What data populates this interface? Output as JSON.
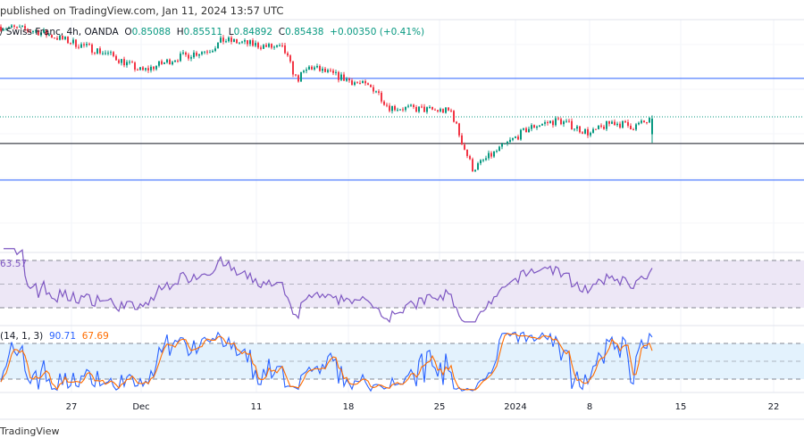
{
  "header": {
    "published": "published on TradingView.com, Jan 11, 2024 13:57 UTC"
  },
  "legend": {
    "symbol": "/ Swiss Franc, 4h, OANDA",
    "o_label": "O",
    "o": "0.85088",
    "h_label": "H",
    "h": "0.85511",
    "l_label": "L",
    "l": "0.84892",
    "c_label": "C",
    "c": "0.85438",
    "change": "+0.00350 (+0.41%)"
  },
  "rsi": {
    "value": "63.57"
  },
  "stoch": {
    "label": "(14, 1, 3)",
    "k": "90.71",
    "d": "67.69"
  },
  "footer": {
    "brand": "TradingView"
  },
  "colors": {
    "up": "#089981",
    "down": "#f23645",
    "level": "#2962ff",
    "rsi": "#7e57c2",
    "rsi_band": "#ede7f6",
    "stoch_k": "#2962ff",
    "stoch_d": "#ff6d00",
    "stoch_band": "#e3f2fd"
  },
  "chart_data": {
    "type": "candlestick",
    "timeframe": "4h",
    "x_ticks": [
      "27",
      "Dec",
      "11",
      "18",
      "25",
      "2024",
      "8",
      "15",
      "22"
    ],
    "approx_close_path": [
      {
        "date": "2023-11-21",
        "close": 0.875
      },
      {
        "date": "2023-11-24",
        "close": 0.874
      },
      {
        "date": "2023-11-29",
        "close": 0.869
      },
      {
        "date": "2023-12-01",
        "close": 0.865
      },
      {
        "date": "2023-12-04",
        "close": 0.868
      },
      {
        "date": "2023-12-07",
        "close": 0.87
      },
      {
        "date": "2023-12-08",
        "close": 0.872
      },
      {
        "date": "2023-12-13",
        "close": 0.87
      },
      {
        "date": "2023-12-14",
        "close": 0.863
      },
      {
        "date": "2023-12-15",
        "close": 0.866
      },
      {
        "date": "2023-12-20",
        "close": 0.861
      },
      {
        "date": "2023-12-21",
        "close": 0.857
      },
      {
        "date": "2023-12-26",
        "close": 0.856
      },
      {
        "date": "2023-12-27",
        "close": 0.849
      },
      {
        "date": "2023-12-28",
        "close": 0.843
      },
      {
        "date": "2023-12-29",
        "close": 0.845
      },
      {
        "date": "2024-01-02",
        "close": 0.852
      },
      {
        "date": "2024-01-03",
        "close": 0.853
      },
      {
        "date": "2024-01-05",
        "close": 0.854
      },
      {
        "date": "2024-01-08",
        "close": 0.851
      },
      {
        "date": "2024-01-09",
        "close": 0.8536
      },
      {
        "date": "2024-01-10",
        "close": 0.8526
      },
      {
        "date": "2024-01-11",
        "close": 0.85438
      }
    ],
    "last_bar": {
      "open": 0.85088,
      "high": 0.85511,
      "low": 0.84892,
      "close": 0.85438
    },
    "horizontal_levels": [
      0.8634,
      0.8488,
      0.8406
    ],
    "current_price_line": 0.85438,
    "indicators": [
      {
        "name": "RSI",
        "bands": [
          70,
          50,
          30
        ],
        "last": 63.57
      },
      {
        "name": "Stoch",
        "bands": [
          80,
          50,
          20
        ],
        "k_last": 90.71,
        "d_last": 67.69
      }
    ]
  }
}
